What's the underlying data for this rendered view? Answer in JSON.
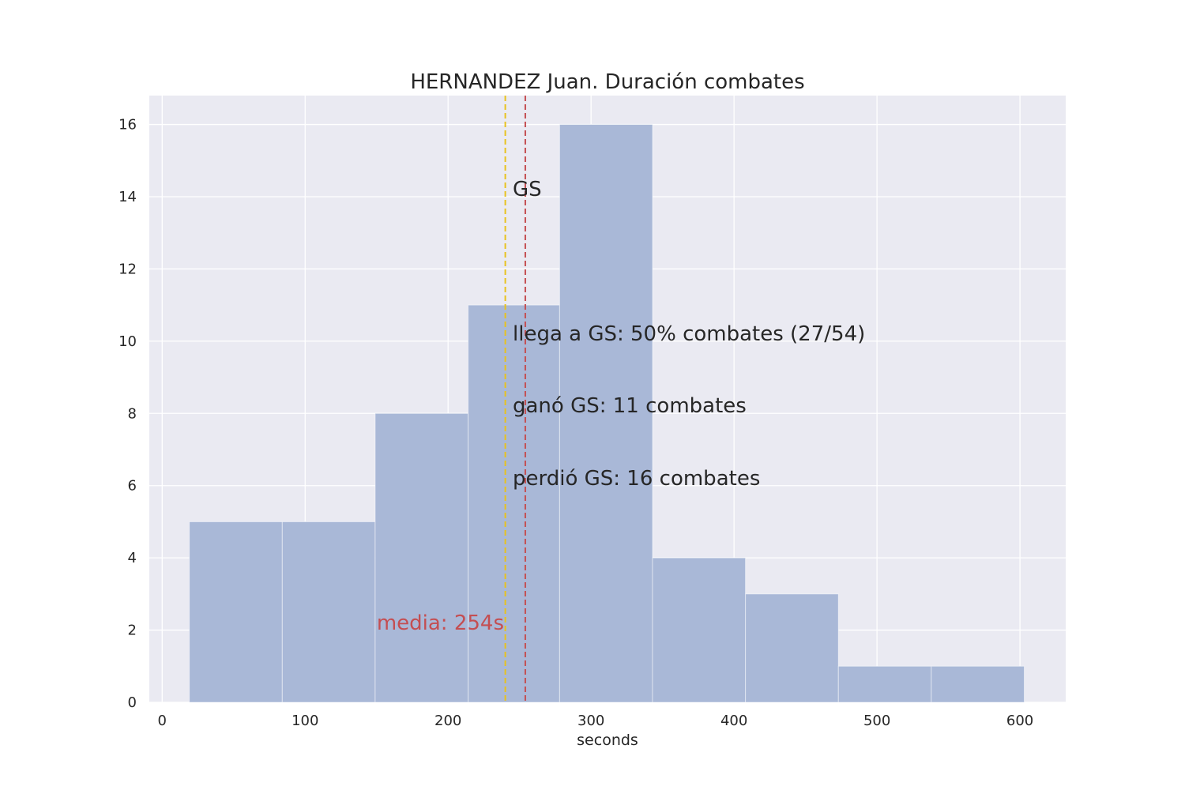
{
  "chart_data": {
    "type": "bar",
    "title": "HERNANDEZ Juan. Duración combates",
    "xlabel": "seconds",
    "ylabel": "",
    "xlim": [
      -9,
      632
    ],
    "ylim": [
      0,
      16.8
    ],
    "xticks": [
      "0",
      "100",
      "200",
      "300",
      "400",
      "500",
      "600"
    ],
    "yticks": [
      "0",
      "2",
      "4",
      "6",
      "8",
      "10",
      "12",
      "14",
      "16"
    ],
    "grid": true,
    "bins": [
      {
        "x0": 19,
        "x1": 84,
        "count": 5
      },
      {
        "x0": 84,
        "x1": 149,
        "count": 5
      },
      {
        "x0": 149,
        "x1": 214,
        "count": 8
      },
      {
        "x0": 214,
        "x1": 278,
        "count": 11
      },
      {
        "x0": 278,
        "x1": 343,
        "count": 16
      },
      {
        "x0": 343,
        "x1": 408,
        "count": 4
      },
      {
        "x0": 408,
        "x1": 473,
        "count": 3
      },
      {
        "x0": 473,
        "x1": 538,
        "count": 1
      },
      {
        "x0": 538,
        "x1": 603,
        "count": 1
      }
    ],
    "vlines": [
      {
        "x": 240,
        "color": "#e8c21f",
        "style": "dashed"
      },
      {
        "x": 254,
        "color": "#c44e52",
        "style": "dashed"
      }
    ],
    "bar_color": "#a9b8d7",
    "annotations": {
      "gs": "GS",
      "reach_gs": "llega a GS: 50% combates (27/54)",
      "won_gs": "ganó GS: 11 combates",
      "lost_gs": "perdió GS: 16 combates",
      "mean": "media: 254s"
    }
  }
}
